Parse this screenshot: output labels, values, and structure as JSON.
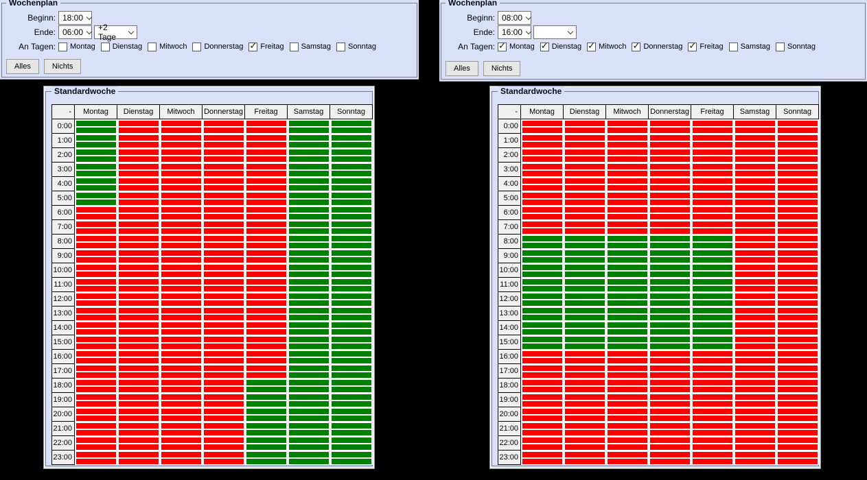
{
  "colors": {
    "active_green": "#008000",
    "inactive_red": "#FF0000",
    "panel_bg": "#D9E1F8",
    "grid_header_bg": "#F0F0F0"
  },
  "panels": [
    {
      "wochenplan": {
        "legend": "Wochenplan",
        "beginn_label": "Beginn:",
        "beginn_value": "18:00",
        "ende_label": "Ende:",
        "ende_value": "06:00",
        "ende_offset_value": "+2 Tage",
        "an_tagen_label": "An Tagen:",
        "days": [
          {
            "label": "Montag",
            "checked": false
          },
          {
            "label": "Dienstag",
            "checked": false
          },
          {
            "label": "Mitwoch",
            "checked": false
          },
          {
            "label": "Donnerstag",
            "checked": false
          },
          {
            "label": "Freitag",
            "checked": true
          },
          {
            "label": "Samstag",
            "checked": false
          },
          {
            "label": "Sonntag",
            "checked": false
          }
        ],
        "alles_button": "Alles",
        "nichts_button": "Nichts"
      },
      "standardwoche": {
        "legend": "Standardwoche",
        "corner_label": "-",
        "day_headers": [
          "Montag",
          "Dienstag",
          "Mitwoch",
          "Donnerstag",
          "Freitag",
          "Samstag",
          "Sonntag"
        ],
        "hour_labels": [
          "0:00",
          "1:00",
          "2:00",
          "3:00",
          "4:00",
          "5:00",
          "6:00",
          "7:00",
          "8:00",
          "9:00",
          "10:00",
          "11:00",
          "12:00",
          "13:00",
          "14:00",
          "15:00",
          "16:00",
          "17:00",
          "18:00",
          "19:00",
          "20:00",
          "21:00",
          "22:00",
          "23:00"
        ],
        "green_hour_ranges": {
          "Montag": [
            [
              0,
              6
            ]
          ],
          "Dienstag": [],
          "Mitwoch": [],
          "Donnerstag": [],
          "Freitag": [
            [
              18,
              24
            ]
          ],
          "Samstag": [
            [
              0,
              24
            ]
          ],
          "Sonntag": [
            [
              0,
              24
            ]
          ]
        }
      }
    },
    {
      "wochenplan": {
        "legend": "Wochenplan",
        "beginn_label": "Beginn:",
        "beginn_value": "08:00",
        "ende_label": "Ende:",
        "ende_value": "16:00",
        "ende_offset_value": "",
        "an_tagen_label": "An Tagen:",
        "days": [
          {
            "label": "Montag",
            "checked": true
          },
          {
            "label": "Dienstag",
            "checked": true
          },
          {
            "label": "Mitwoch",
            "checked": true
          },
          {
            "label": "Donnerstag",
            "checked": true
          },
          {
            "label": "Freitag",
            "checked": true
          },
          {
            "label": "Samstag",
            "checked": false
          },
          {
            "label": "Sonntag",
            "checked": false
          }
        ],
        "alles_button": "Alles",
        "nichts_button": "Nichts"
      },
      "standardwoche": {
        "legend": "Standardwoche",
        "corner_label": "-",
        "day_headers": [
          "Montag",
          "Dienstag",
          "Mitwoch",
          "Donnerstag",
          "Freitag",
          "Samstag",
          "Sonntag"
        ],
        "hour_labels": [
          "0:00",
          "1:00",
          "2:00",
          "3:00",
          "4:00",
          "5:00",
          "6:00",
          "7:00",
          "8:00",
          "9:00",
          "10:00",
          "11:00",
          "12:00",
          "13:00",
          "14:00",
          "15:00",
          "16:00",
          "17:00",
          "18:00",
          "19:00",
          "20:00",
          "21:00",
          "22:00",
          "23:00"
        ],
        "green_hour_ranges": {
          "Montag": [
            [
              8,
              16
            ]
          ],
          "Dienstag": [
            [
              8,
              16
            ]
          ],
          "Mitwoch": [
            [
              8,
              16
            ]
          ],
          "Donnerstag": [
            [
              8,
              16
            ]
          ],
          "Freitag": [
            [
              8,
              16
            ]
          ],
          "Samstag": [],
          "Sonntag": []
        }
      }
    }
  ]
}
